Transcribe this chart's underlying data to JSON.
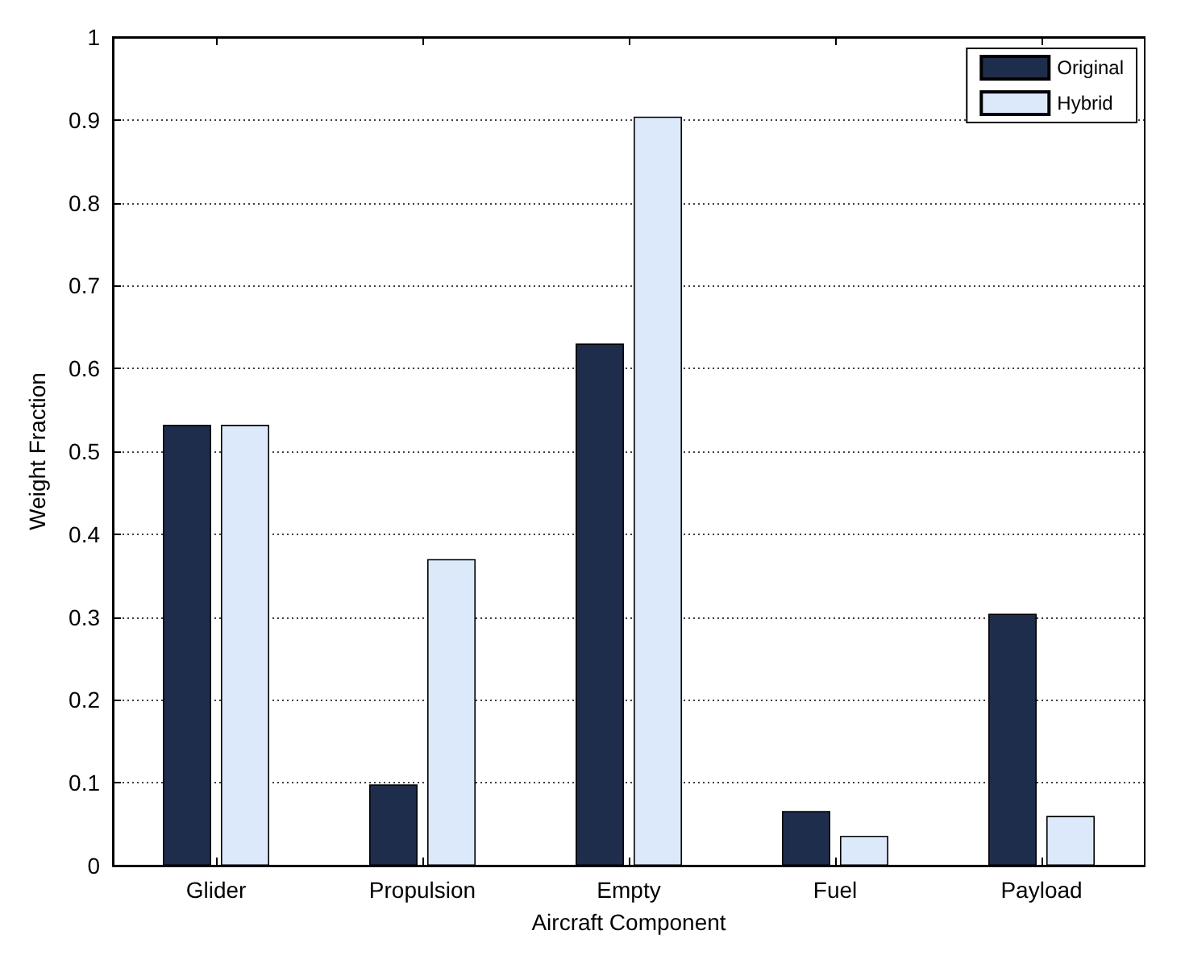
{
  "chart_data": {
    "type": "bar",
    "xlabel": "Aircraft Component",
    "ylabel": "Weight Fraction",
    "categories": [
      "Glider",
      "Propulsion",
      "Empty",
      "Fuel",
      "Payload"
    ],
    "series": [
      {
        "name": "Original",
        "color": "#1f2d4d",
        "values": [
          0.532,
          0.098,
          0.63,
          0.066,
          0.304
        ]
      },
      {
        "name": "Hybrid",
        "color": "#dce9fb",
        "values": [
          0.532,
          0.37,
          0.904,
          0.036,
          0.06
        ]
      }
    ],
    "ylim": [
      0,
      1
    ],
    "yticks": [
      0,
      0.1,
      0.2,
      0.3,
      0.4,
      0.5,
      0.6,
      0.7,
      0.8,
      0.9,
      1
    ],
    "grid": "y",
    "legend": "top right"
  }
}
